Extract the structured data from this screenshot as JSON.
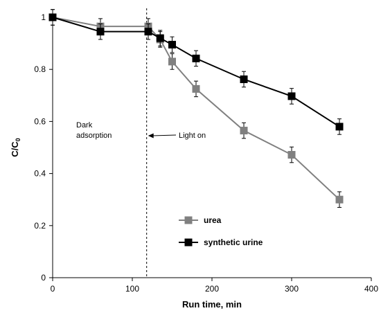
{
  "chart_data": {
    "type": "line",
    "title": "",
    "xlabel": "Run time, min",
    "ylabel_main": "C/C",
    "ylabel_sub": "0",
    "xlim": [
      0,
      400
    ],
    "ylim": [
      0,
      1
    ],
    "x_ticks": [
      0,
      100,
      200,
      300,
      400
    ],
    "y_ticks": [
      0,
      0.2,
      0.4,
      0.6,
      0.8,
      1
    ],
    "y_tick_labels": [
      "0",
      "0.2",
      "0.4",
      "0.6",
      "0.8",
      "1"
    ],
    "grid": false,
    "legend_position": "bottom-center",
    "series": [
      {
        "name": "urea",
        "color": "#808080",
        "marker": "square",
        "x": [
          0,
          60,
          120,
          135,
          150,
          180,
          240,
          300,
          360
        ],
        "y": [
          1.0,
          0.965,
          0.965,
          0.915,
          0.83,
          0.725,
          0.565,
          0.472,
          0.3
        ],
        "err": [
          0.03,
          0.03,
          0.03,
          0.03,
          0.03,
          0.03,
          0.03,
          0.03,
          0.03
        ]
      },
      {
        "name": "synthetic urine",
        "color": "#000000",
        "marker": "square",
        "x": [
          0,
          60,
          120,
          135,
          150,
          180,
          240,
          300,
          360
        ],
        "y": [
          1.0,
          0.945,
          0.945,
          0.92,
          0.895,
          0.842,
          0.762,
          0.697,
          0.58
        ],
        "err": [
          0.03,
          0.03,
          0.03,
          0.03,
          0.03,
          0.03,
          0.03,
          0.03,
          0.03
        ]
      }
    ],
    "marker_fill": "#000000",
    "annotations": {
      "dark_line1": "Dark",
      "dark_line2": "adsorption",
      "light_on": "Light on",
      "light_on_x": 118
    }
  }
}
